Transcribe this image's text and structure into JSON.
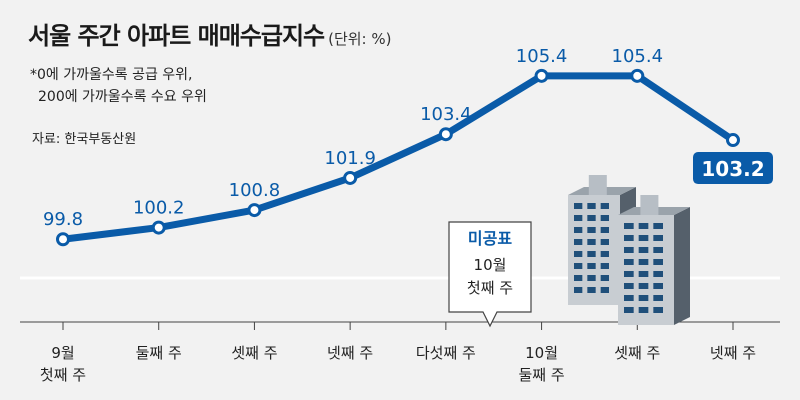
{
  "header": {
    "title": "서울 주간 아파트 매매수급지수",
    "unit": "(단위: %)",
    "note_line1": "*0에 가까울수록 공급 우위,",
    "note_line2": "200에 가까울수록 수요 우위",
    "source": "자료: 한국부동산원"
  },
  "callout": {
    "label": "미공표",
    "date_line1": "10월",
    "date_line2": "첫째 주"
  },
  "colors": {
    "line": "#0a5ba8",
    "label": "#0a5ba8",
    "highlight_box": "#0a5ba8",
    "background": "#f2f2f2",
    "baseline": "#ffffff"
  },
  "chart_data": {
    "type": "line",
    "title": "서울 주간 아파트 매매수급지수",
    "unit": "%",
    "categories": [
      [
        "9월",
        "첫째 주"
      ],
      [
        "둘째 주"
      ],
      [
        "셋째 주"
      ],
      [
        "넷째 주"
      ],
      [
        "다섯째 주"
      ],
      [
        "10월",
        "둘째 주"
      ],
      [
        "셋째 주"
      ],
      [
        "넷째 주"
      ]
    ],
    "values": [
      99.8,
      100.2,
      100.8,
      101.9,
      103.4,
      105.4,
      105.4,
      103.2
    ],
    "value_labels": [
      "99.8",
      "100.2",
      "100.8",
      "101.9",
      "103.4",
      "105.4",
      "105.4",
      "103.2"
    ],
    "highlighted_index": 7,
    "unpublished_period": "10월 첫째 주",
    "ylim": [
      99.5,
      105.6
    ],
    "grid": false
  }
}
